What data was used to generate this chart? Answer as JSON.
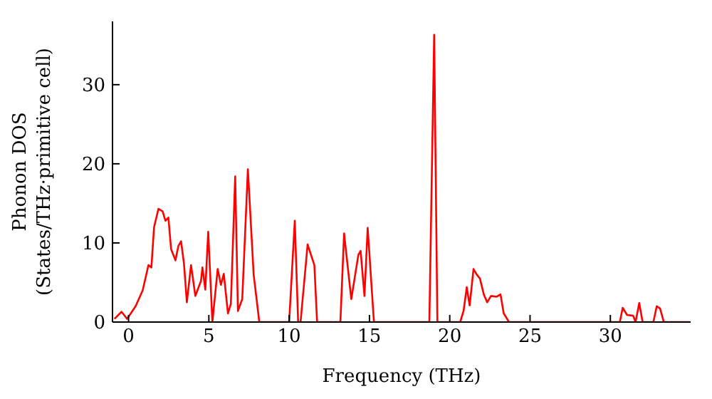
{
  "chart_data": {
    "type": "line",
    "xlabel": "Frequency (THz)",
    "ylabel": "Phonon DOS\n(States/THz·primitive cell)",
    "xlim": [
      -1,
      35
    ],
    "ylim": [
      0,
      38
    ],
    "xticks": [
      0,
      5,
      10,
      15,
      20,
      25,
      30
    ],
    "yticks": [
      0,
      10,
      20,
      30
    ],
    "grid": false,
    "legend": false,
    "marker": "none",
    "line_style": "solid",
    "x": [
      -0.88,
      -0.44,
      -0.09,
      0.44,
      0.88,
      1.24,
      1.42,
      1.59,
      1.86,
      2.12,
      2.3,
      2.48,
      2.65,
      2.92,
      3.1,
      3.27,
      3.45,
      3.63,
      3.89,
      4.16,
      4.51,
      4.6,
      4.78,
      4.96,
      5.22,
      5.55,
      5.75,
      5.93,
      6.19,
      6.37,
      6.64,
      6.81,
      7.08,
      7.43,
      7.79,
      8.14,
      10,
      10.35,
      10.56,
      10.71,
      11.15,
      11.57,
      11.74,
      13.19,
      13.42,
      13.87,
      14.31,
      14.45,
      14.69,
      14.89,
      15.28,
      18.73,
      19.03,
      19.23,
      20.65,
      20.86,
      21.06,
      21.24,
      21.48,
      21.68,
      21.88,
      22.12,
      22.33,
      22.57,
      22.92,
      23.16,
      23.36,
      23.69,
      30.59,
      30.77,
      31.04,
      31.42,
      31.57,
      31.8,
      32.01,
      32.68,
      32.89,
      33.1,
      33.33,
      34.96
    ],
    "series": [
      {
        "color": "#ff0000",
        "values": [
          0.4,
          1.3,
          0.4,
          2,
          4,
          7.2,
          6.9,
          12,
          14.3,
          14,
          12.8,
          13.2,
          9.2,
          7.8,
          9.6,
          10.2,
          7.4,
          2.5,
          7.2,
          3.3,
          5.2,
          6.9,
          4.1,
          11.4,
          0,
          6.7,
          4.7,
          6.1,
          1.1,
          2.3,
          18.4,
          1.4,
          2.9,
          19.3,
          6,
          0,
          0,
          12.8,
          0,
          0,
          9.8,
          7.2,
          0,
          0,
          11.2,
          2.9,
          8.5,
          9,
          3.3,
          11.9,
          0,
          0,
          36.3,
          0,
          0,
          1.4,
          4.4,
          2.1,
          6.7,
          6,
          5.5,
          3.5,
          2.5,
          3.3,
          3.2,
          3.5,
          1.1,
          0,
          0,
          1.8,
          0.9,
          0.8,
          0,
          2.4,
          0,
          0,
          2,
          1.7,
          0,
          0
        ]
      }
    ]
  }
}
